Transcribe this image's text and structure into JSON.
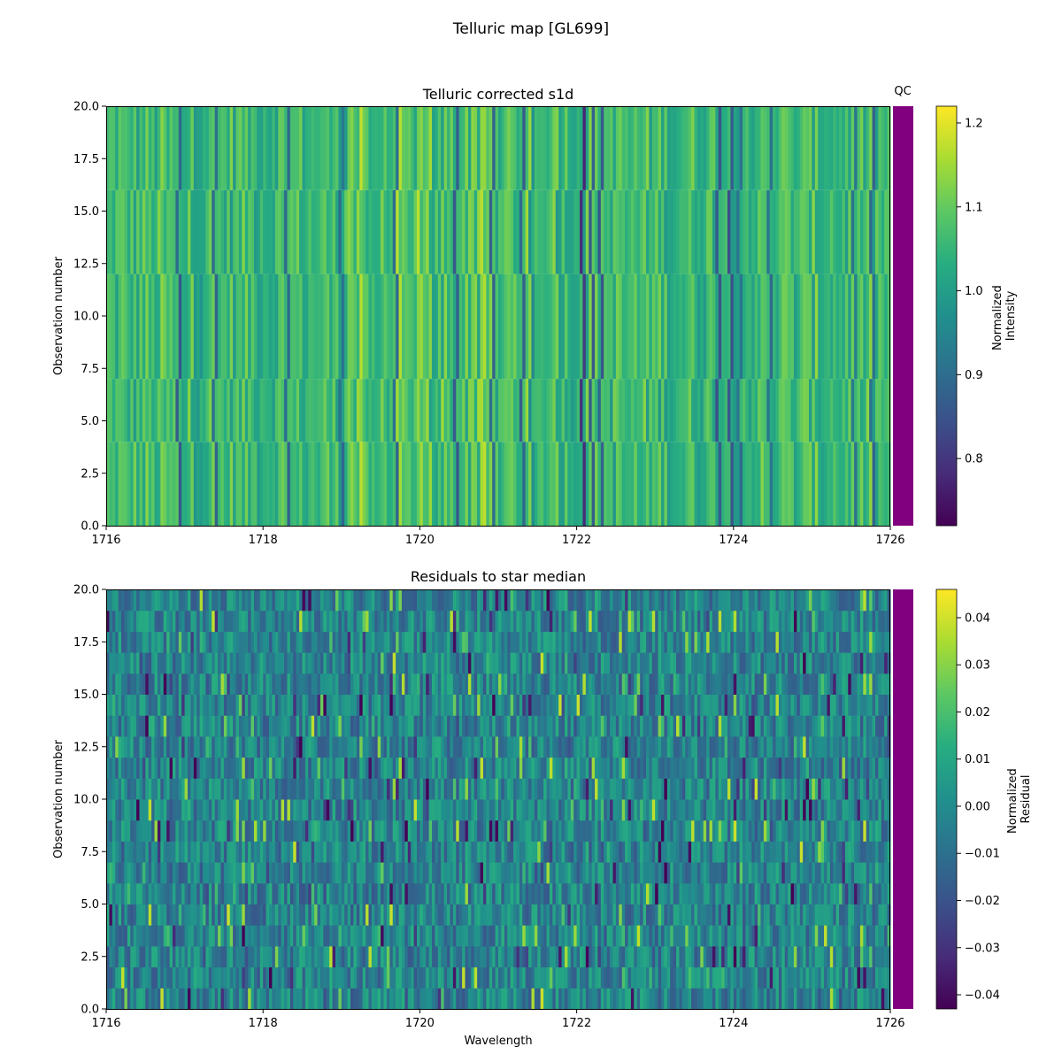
{
  "figure": {
    "suptitle": "Telluric map [GL699]"
  },
  "chart_data": [
    {
      "type": "heatmap",
      "title": "Telluric corrected s1d",
      "xlabel": "",
      "ylabel": "Observation number",
      "xlim": [
        1716,
        1726
      ],
      "ylim": [
        0.0,
        20.0
      ],
      "xticks": [
        "1716",
        "1718",
        "1720",
        "1722",
        "1724",
        "1726"
      ],
      "yticks": [
        "0.0",
        "2.5",
        "5.0",
        "7.5",
        "10.0",
        "12.5",
        "15.0",
        "17.5",
        "20.0"
      ],
      "colormap": "viridis",
      "qc_label": "QC",
      "qc_color": "#800080",
      "colorbar": {
        "label": "Normalized\nIntensity",
        "range": [
          0.72,
          1.22
        ],
        "ticks": [
          0.8,
          0.9,
          1.0,
          1.1,
          1.2
        ],
        "tick_labels": [
          "0.8",
          "0.9",
          "1.0",
          "1.1",
          "1.2"
        ]
      },
      "row_groups": [
        [
          0,
          4
        ],
        [
          4,
          7
        ],
        [
          7,
          12
        ],
        [
          12,
          16
        ],
        [
          16,
          20
        ]
      ]
    },
    {
      "type": "heatmap",
      "title": "Residuals to star median",
      "xlabel": "Wavelength",
      "ylabel": "Observation number",
      "xlim": [
        1716,
        1726
      ],
      "ylim": [
        0.0,
        20.0
      ],
      "xticks": [
        "1716",
        "1718",
        "1720",
        "1722",
        "1724",
        "1726"
      ],
      "yticks": [
        "0.0",
        "2.5",
        "5.0",
        "7.5",
        "10.0",
        "12.5",
        "15.0",
        "17.5",
        "20.0"
      ],
      "colormap": "viridis",
      "qc_color": "#800080",
      "colorbar": {
        "label": "Normalized\nResidual",
        "range": [
          -0.043,
          0.046
        ],
        "ticks": [
          -0.04,
          -0.03,
          -0.02,
          -0.01,
          0.0,
          0.01,
          0.02,
          0.03,
          0.04
        ],
        "tick_labels": [
          "−0.04",
          "−0.03",
          "−0.02",
          "−0.01",
          "0.00",
          "0.01",
          "0.02",
          "0.03",
          "0.04"
        ]
      }
    }
  ]
}
